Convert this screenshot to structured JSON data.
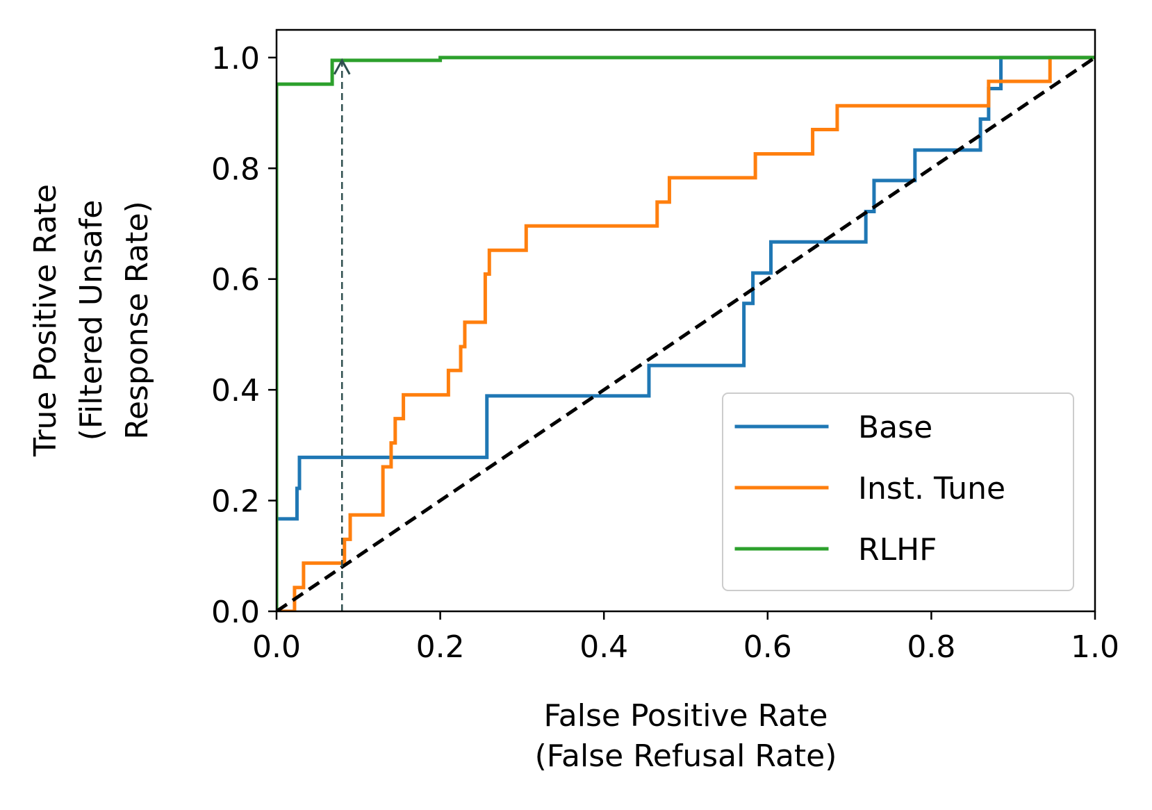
{
  "chart_data": {
    "type": "line",
    "title": "",
    "xlabel": [
      "False Positive Rate",
      "(False Refusal Rate)"
    ],
    "ylabel": [
      "True Positive Rate",
      "(Filtered Unsafe",
      "Response Rate)"
    ],
    "xlim": [
      0,
      1.0
    ],
    "ylim": [
      0,
      1.05
    ],
    "xticks": [
      "0.0",
      "0.2",
      "0.4",
      "0.6",
      "0.8",
      "1.0"
    ],
    "yticks": [
      "0.0",
      "0.2",
      "0.4",
      "0.6",
      "0.8",
      "1.0"
    ],
    "grid": false,
    "legend_position": "lower-right",
    "series": [
      {
        "name": "Base",
        "color": "#1f77b4",
        "x": [
          0.0,
          0.0,
          0.025,
          0.025,
          0.028,
          0.028,
          0.257,
          0.257,
          0.455,
          0.455,
          0.571,
          0.571,
          0.582,
          0.582,
          0.604,
          0.604,
          0.72,
          0.72,
          0.73,
          0.73,
          0.78,
          0.78,
          0.86,
          0.86,
          0.87,
          0.87,
          0.875,
          0.875,
          0.885,
          0.885,
          1.0
        ],
        "y": [
          0.0,
          0.167,
          0.167,
          0.222,
          0.222,
          0.278,
          0.278,
          0.389,
          0.389,
          0.444,
          0.444,
          0.556,
          0.556,
          0.611,
          0.611,
          0.667,
          0.667,
          0.722,
          0.722,
          0.778,
          0.778,
          0.833,
          0.833,
          0.889,
          0.889,
          0.944,
          0.944,
          0.944,
          0.944,
          1.0,
          1.0
        ]
      },
      {
        "name": "Inst. Tune",
        "color": "#ff7f0e",
        "x": [
          0.0,
          0.022,
          0.022,
          0.033,
          0.033,
          0.083,
          0.083,
          0.09,
          0.09,
          0.097,
          0.097,
          0.13,
          0.13,
          0.14,
          0.14,
          0.145,
          0.145,
          0.155,
          0.155,
          0.21,
          0.21,
          0.225,
          0.225,
          0.23,
          0.23,
          0.255,
          0.255,
          0.26,
          0.26,
          0.305,
          0.305,
          0.465,
          0.465,
          0.48,
          0.48,
          0.585,
          0.585,
          0.655,
          0.655,
          0.685,
          0.685,
          0.87,
          0.87,
          0.945,
          0.945,
          1.0
        ],
        "y": [
          0.0,
          0.0,
          0.043,
          0.043,
          0.087,
          0.087,
          0.13,
          0.13,
          0.174,
          0.174,
          0.174,
          0.174,
          0.261,
          0.261,
          0.304,
          0.304,
          0.348,
          0.348,
          0.391,
          0.391,
          0.435,
          0.435,
          0.478,
          0.478,
          0.522,
          0.522,
          0.609,
          0.609,
          0.652,
          0.652,
          0.696,
          0.696,
          0.739,
          0.739,
          0.783,
          0.783,
          0.826,
          0.826,
          0.87,
          0.87,
          0.913,
          0.913,
          0.957,
          0.957,
          1.0,
          1.0
        ]
      },
      {
        "name": "RLHF",
        "color": "#2ca02c",
        "x": [
          0.0,
          0.0,
          0.068,
          0.068,
          0.2,
          0.2,
          1.0
        ],
        "y": [
          0.0,
          0.952,
          0.952,
          0.995,
          0.995,
          1.0,
          1.0
        ]
      }
    ],
    "reference_line": {
      "style": "dashed",
      "color": "#000000",
      "x": [
        0,
        1.0
      ],
      "y": [
        0,
        1.0
      ]
    },
    "annotation": {
      "type": "dashed-arrow",
      "color": "#2f4f4f",
      "x": 0.08,
      "y_from": 0.0,
      "y_to": 0.995
    }
  }
}
